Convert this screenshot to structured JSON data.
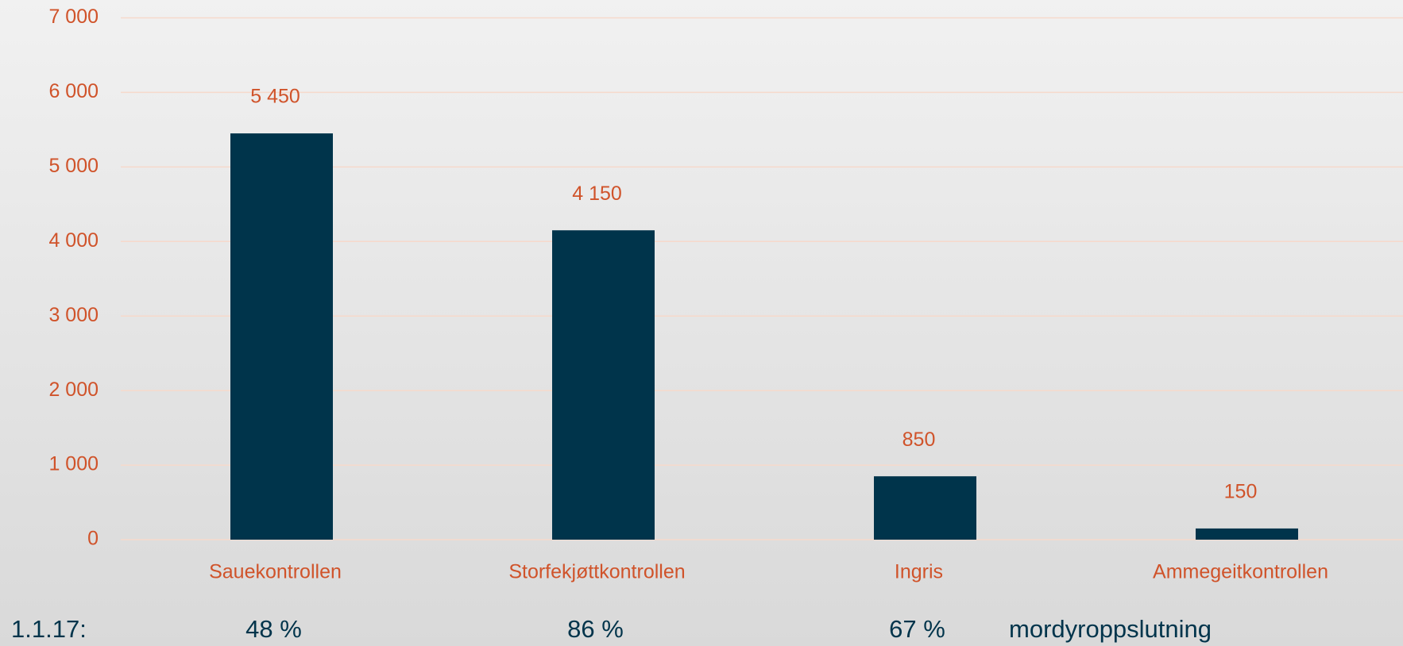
{
  "chart_data": {
    "type": "bar",
    "categories": [
      "Sauekontrollen",
      "Storfekjøttkontrollen",
      "Ingris",
      "Ammegeitkontrollen"
    ],
    "values": [
      5450,
      4150,
      850,
      150
    ],
    "value_labels": [
      "5 450",
      "4 150",
      "850",
      "150"
    ],
    "color": "#00344b",
    "ylim": [
      0,
      7000
    ],
    "yticks": [
      0,
      {
        "value": 1000,
        "label": "1 000"
      },
      {
        "value": 2000,
        "label": "2 000"
      },
      {
        "value": 3000,
        "label": "3 000"
      },
      {
        "value": 4000,
        "label": "4 000"
      },
      {
        "value": 5000,
        "label": "5 000"
      },
      {
        "value": 6000,
        "label": "6 000"
      },
      {
        "value": 7000,
        "label": "7 000"
      }
    ],
    "grid": true
  },
  "footer": {
    "date": "1.1.17:",
    "shares": [
      "48 %",
      "86 %",
      "67 %"
    ],
    "note": "mordyroppslutning"
  }
}
